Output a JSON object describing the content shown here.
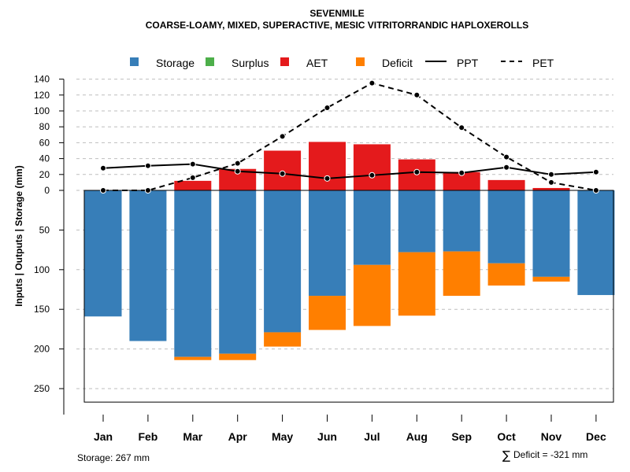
{
  "title": "SEVENMILE",
  "subtitle": "COARSE-LOAMY, MIXED, SUPERACTIVE, MESIC VITRITORRANDIC HAPLOXEROLLS",
  "colors": {
    "storage": "#377EB8",
    "surplus": "#4DAF4A",
    "aet": "#E41A1C",
    "deficit": "#FF7F00",
    "grid": "#BEBEBE"
  },
  "legend": {
    "storage": "Storage",
    "surplus": "Surplus",
    "aet": "AET",
    "deficit": "Deficit",
    "ppt": "PPT",
    "pet": "PET"
  },
  "footer": {
    "storage_total": "Storage: 267 mm",
    "deficit_symbol": "∑",
    "deficit_total": "Deficit = -321 mm"
  },
  "chart_data": {
    "type": "bar",
    "ylabel": "Inputs | Outputs | Storage     (mm)",
    "categories": [
      "Jan",
      "Feb",
      "Mar",
      "Apr",
      "May",
      "Jun",
      "Jul",
      "Aug",
      "Sep",
      "Oct",
      "Nov",
      "Dec"
    ],
    "upper_ticks": [
      "0",
      "20",
      "40",
      "60",
      "80",
      "100",
      "120",
      "140"
    ],
    "lower_ticks": [
      "50",
      "100",
      "150",
      "200",
      "250"
    ],
    "upper_ylim": [
      0,
      140
    ],
    "lower_ylim": [
      0,
      267
    ],
    "series": [
      {
        "name": "Storage",
        "position": "below",
        "values": [
          159,
          190,
          210,
          206,
          179,
          133,
          94,
          78,
          77,
          92,
          109,
          132
        ]
      },
      {
        "name": "Deficit",
        "position": "below",
        "values": [
          0,
          0,
          4,
          8,
          18,
          43,
          77,
          80,
          56,
          28,
          6,
          0
        ]
      },
      {
        "name": "AET",
        "position": "above",
        "values": [
          0,
          0,
          12,
          27,
          50,
          61,
          58,
          39,
          23,
          13,
          3,
          0
        ]
      },
      {
        "name": "Surplus",
        "position": "above",
        "values": [
          0,
          0,
          0,
          0,
          0,
          0,
          0,
          0,
          0,
          0,
          0,
          0
        ]
      },
      {
        "name": "PPT",
        "style": "solid-line",
        "values": [
          28,
          31,
          33,
          24,
          21,
          15,
          19,
          23,
          22,
          29,
          20,
          23
        ]
      },
      {
        "name": "PET",
        "style": "dashed-line",
        "values": [
          0,
          0,
          16,
          34,
          68,
          104,
          135,
          120,
          79,
          42,
          10,
          0
        ]
      }
    ]
  }
}
